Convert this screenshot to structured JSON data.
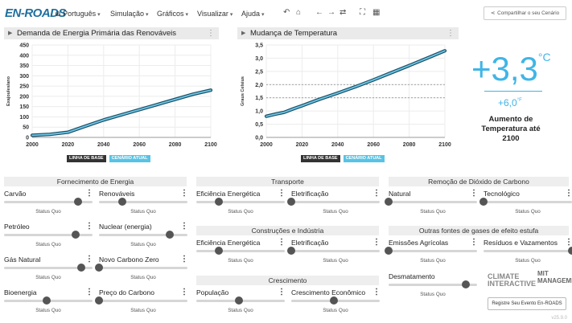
{
  "app": {
    "logo": "EN-ROADS",
    "language": "Português",
    "menus": [
      "Simulação",
      "Gráficos",
      "Visualizar",
      "Ajuda"
    ],
    "share_label": "Compartilhar o seu Cenário",
    "register_label": "Registre Seu Evento En-ROADS",
    "version": "v25.9.0"
  },
  "charts": {
    "left_title": "Demanda de Energia Primária das Renováveis",
    "right_title": "Mudança de Temperatura",
    "legend_base": "LINHA DE BASE",
    "legend_current": "CENÁRIO ATUAL"
  },
  "chart_data": [
    {
      "type": "line",
      "title": "Demanda de Energia Primária das Renováveis",
      "ylabel": "Exajoules/ano",
      "xlim": [
        2000,
        2100
      ],
      "ylim": [
        0,
        450
      ],
      "x_ticks": [
        "2000",
        "2020",
        "2040",
        "2060",
        "2080",
        "2100"
      ],
      "y_ticks": [
        "0",
        "50",
        "100",
        "150",
        "200",
        "250",
        "300",
        "350",
        "400",
        "450"
      ],
      "x": [
        2000,
        2010,
        2020,
        2030,
        2040,
        2050,
        2060,
        2070,
        2080,
        2090,
        2100
      ],
      "series": [
        {
          "name": "LINHA DE BASE",
          "values": [
            10,
            15,
            25,
            55,
            85,
            110,
            135,
            160,
            185,
            210,
            230
          ]
        },
        {
          "name": "CENÁRIO ATUAL",
          "values": [
            10,
            15,
            25,
            55,
            85,
            110,
            135,
            160,
            185,
            210,
            230
          ]
        }
      ]
    },
    {
      "type": "line",
      "title": "Mudança de Temperatura",
      "ylabel": "Graus Celsius",
      "xlim": [
        2000,
        2100
      ],
      "ylim": [
        0,
        3.5
      ],
      "x_ticks": [
        "2000",
        "2020",
        "2040",
        "2060",
        "2080",
        "2100"
      ],
      "y_ticks": [
        "0,0",
        "0,5",
        "1,0",
        "1,5",
        "2,0",
        "2,5",
        "3,0",
        "3,5"
      ],
      "reference_lines": [
        1.5,
        2.0
      ],
      "x": [
        2000,
        2005,
        2010,
        2015,
        2020,
        2030,
        2040,
        2050,
        2060,
        2070,
        2080,
        2090,
        2100
      ],
      "series": [
        {
          "name": "LINHA DE BASE",
          "values": [
            0.8,
            0.88,
            0.95,
            1.08,
            1.2,
            1.45,
            1.68,
            1.92,
            2.18,
            2.45,
            2.72,
            3.0,
            3.28
          ]
        },
        {
          "name": "CENÁRIO ATUAL",
          "values": [
            0.8,
            0.88,
            0.95,
            1.08,
            1.2,
            1.45,
            1.68,
            1.92,
            2.18,
            2.45,
            2.72,
            3.0,
            3.28
          ]
        }
      ]
    }
  ],
  "temperature": {
    "main": "+3,3",
    "main_unit": "°C",
    "secondary": "+6,0",
    "secondary_unit": "°F",
    "caption": "Aumento de Temperatura até 2100"
  },
  "sections": {
    "energy": "Fornecimento de Energia",
    "transport": "Transporte",
    "buildings": "Construções e Indústria",
    "growth": "Crescimento",
    "removal": "Remoção de Dióxido de Carbono",
    "other_gases": "Outras fontes de gases de efeito estufa"
  },
  "sliders": [
    {
      "label": "Carvão",
      "status": "Status Quo",
      "level": 0.84
    },
    {
      "label": "Renováveis",
      "status": "Status Quo",
      "level": 0.26
    },
    {
      "label": "Petróleo",
      "status": "Status Quo",
      "level": 0.81
    },
    {
      "label": "Nuclear (energia)",
      "status": "Status Quo",
      "level": 0.8
    },
    {
      "label": "Gás Natural",
      "status": "Status Quo",
      "level": 0.87
    },
    {
      "label": "Novo Carbono Zero",
      "status": "Status Quo",
      "level": 0.0
    },
    {
      "label": "Bioenergia",
      "status": "Status Quo",
      "level": 0.48
    },
    {
      "label": "Preço do Carbono",
      "status": "Status Quo",
      "level": 0.0
    },
    {
      "label": "Eficiência Energética",
      "status": "Status Quo",
      "level": 0.25
    },
    {
      "label": "Eletrificação",
      "status": "Status Quo",
      "level": 0.0
    },
    {
      "label": "Eficiência Energética",
      "status": "Status Quo",
      "level": 0.25
    },
    {
      "label": "Eletrificação",
      "status": "Status Quo",
      "level": 0.0
    },
    {
      "label": "População",
      "status": "Status Quo",
      "level": 0.48
    },
    {
      "label": "Crescimento Econômico",
      "status": "Status Quo",
      "level": 0.48
    },
    {
      "label": "Natural",
      "status": "Status Quo",
      "level": 0.0
    },
    {
      "label": "Tecnológico",
      "status": "Status Quo",
      "level": 0.0
    },
    {
      "label": "Emissões Agrícolas",
      "status": "Status Quo",
      "level": 0.0
    },
    {
      "label": "Resíduos e Vazamentos",
      "status": "Status Quo",
      "level": 1.0
    },
    {
      "label": "Desmatamento",
      "status": "Status Quo",
      "level": 0.87
    }
  ],
  "partners": {
    "climate": "CLIMATE INTERACTIVE",
    "mit": "MIT MANAGEMENT"
  },
  "icons": {
    "globe": "globe-icon",
    "undo": "undo-icon",
    "home": "home-icon",
    "back": "back-icon",
    "forward": "forward-icon",
    "compare": "compare-icon",
    "fullscreen": "fullscreen-icon",
    "grid": "grid-icon",
    "share": "share-icon"
  }
}
